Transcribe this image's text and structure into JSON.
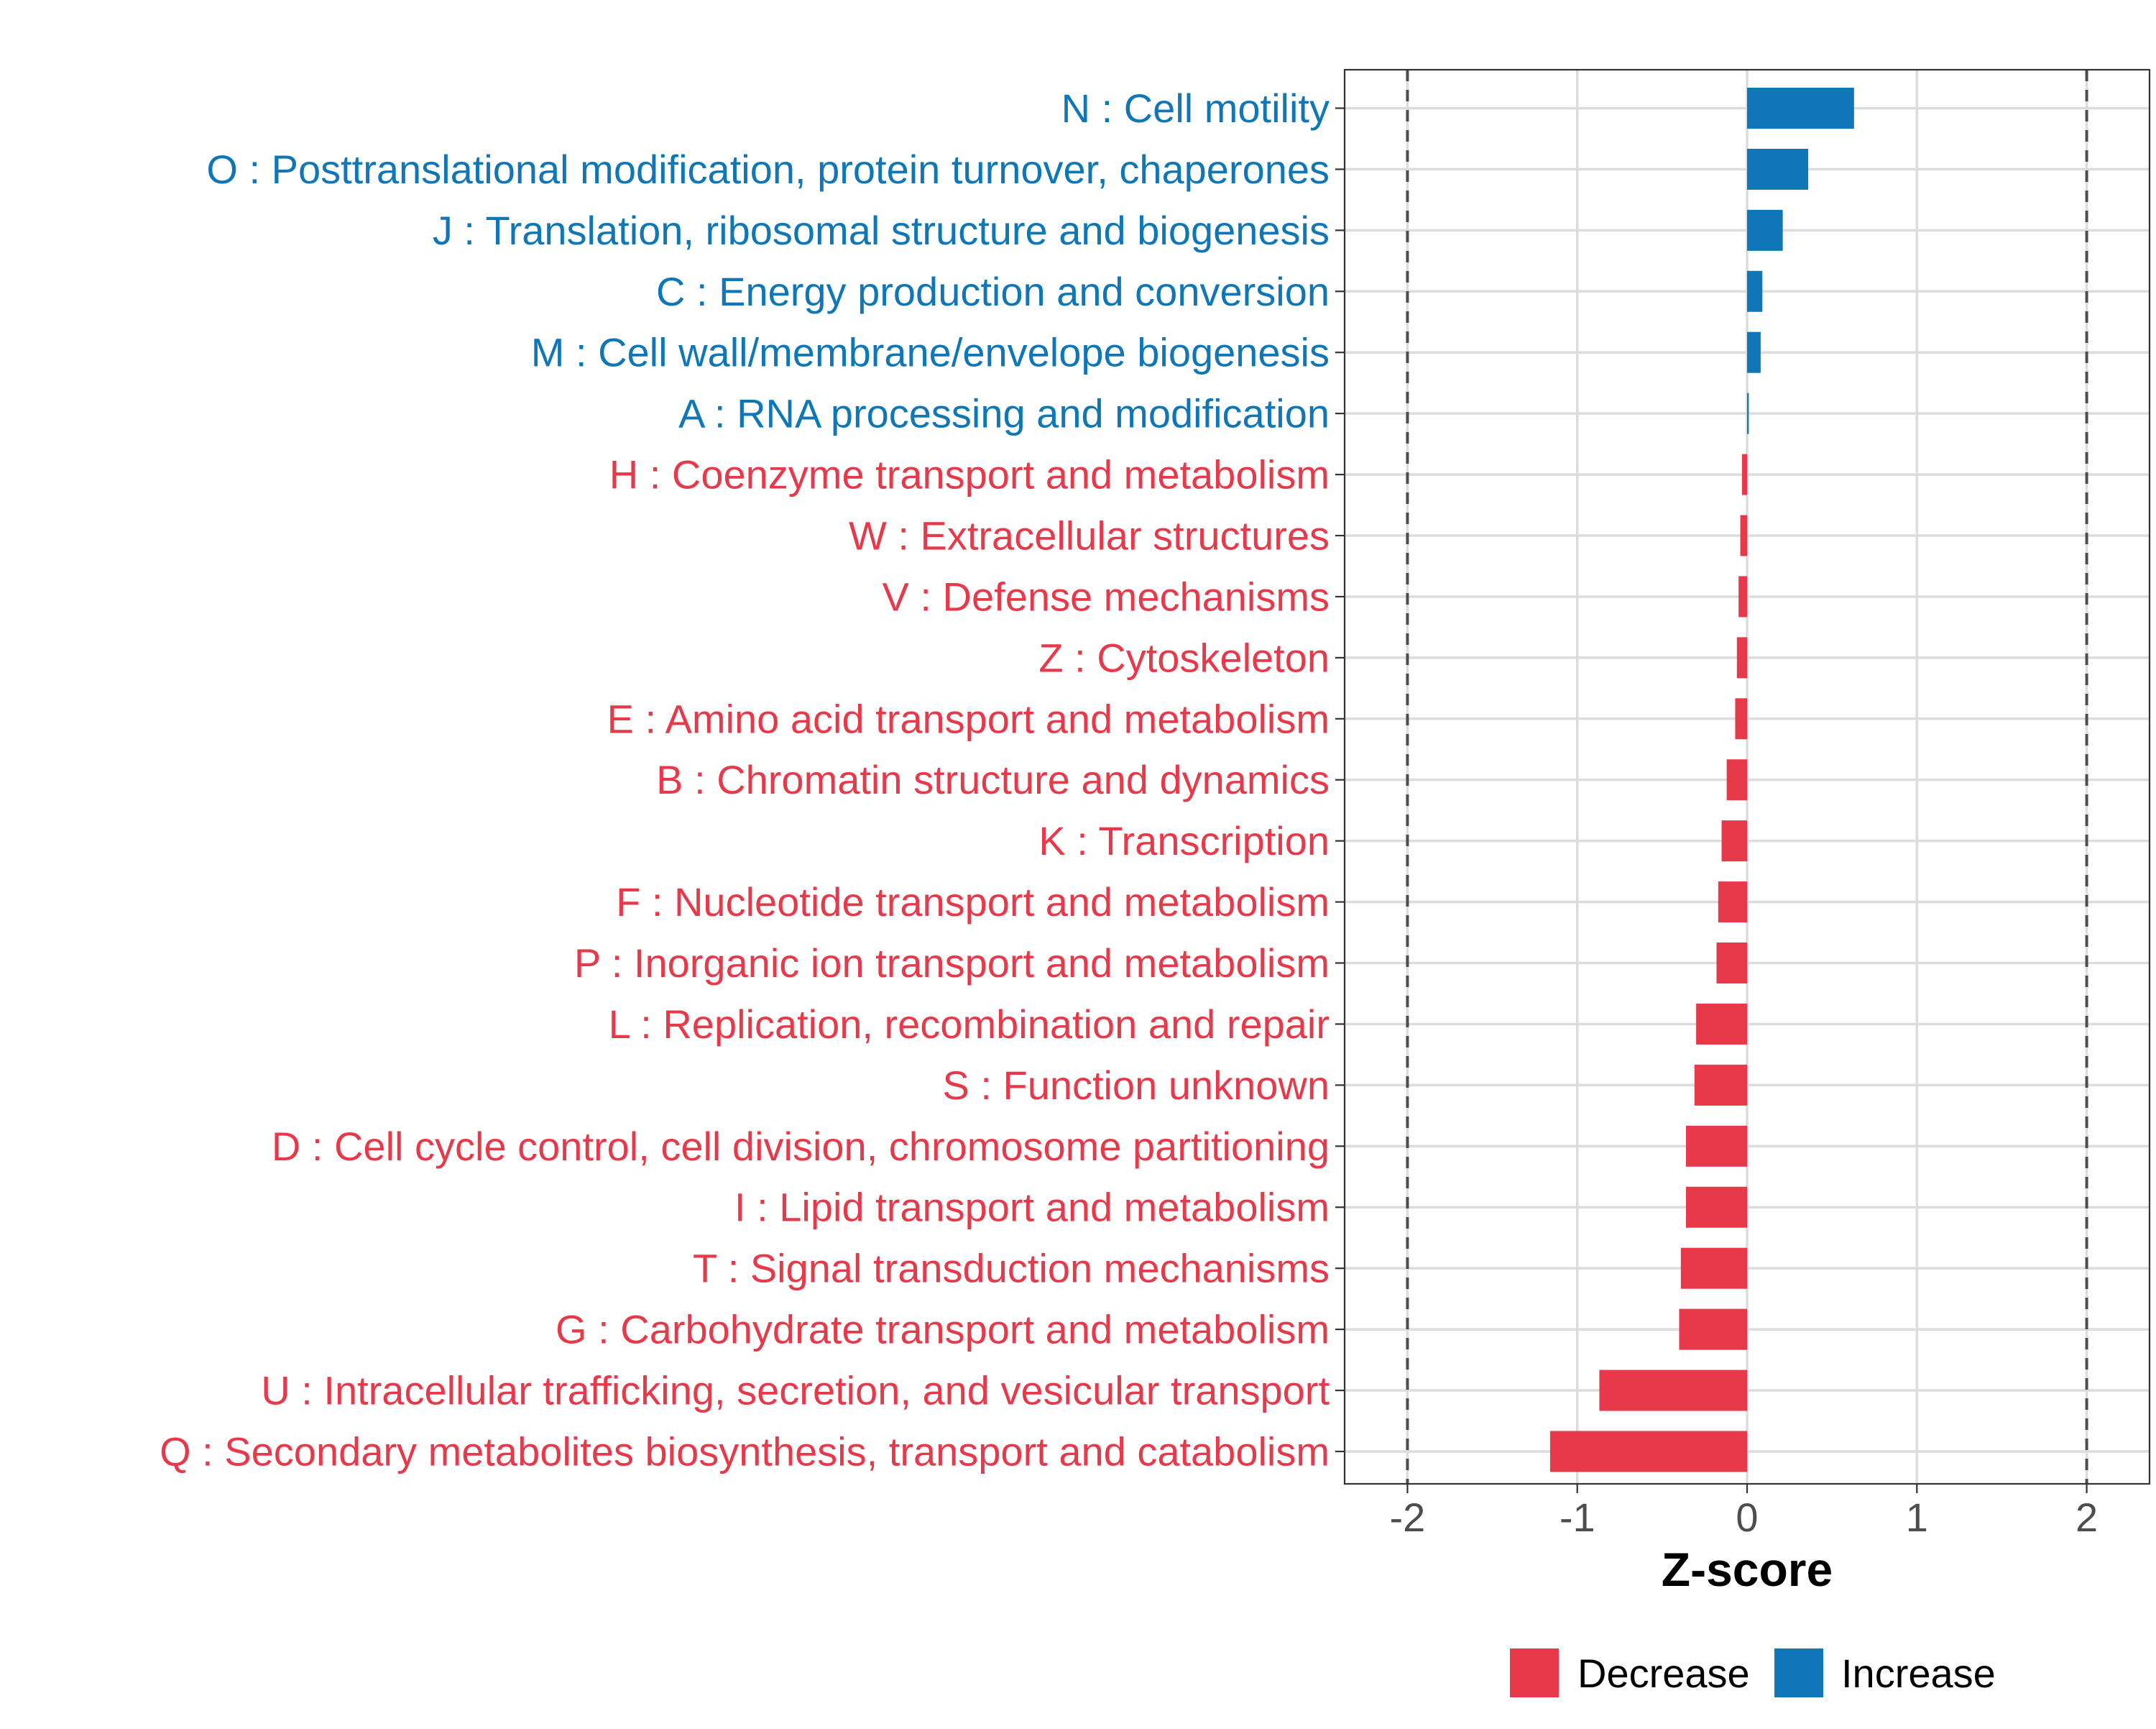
{
  "chart_data": {
    "type": "bar",
    "orientation": "horizontal",
    "title": "",
    "xlabel": "Z-score",
    "ylabel": "",
    "xlim": [
      -2.37,
      2.37
    ],
    "xticks": [
      -2,
      -1,
      0,
      1,
      2
    ],
    "xtick_labels": [
      "-2",
      "-1",
      "0",
      "1",
      "2"
    ],
    "reference_lines": [
      -2,
      2
    ],
    "grid": true,
    "legend_position": "bottom",
    "colors": {
      "Decrease": "#E8394A",
      "Increase": "#0F77B8"
    },
    "legend": [
      {
        "label": "Decrease",
        "color": "#E8394A"
      },
      {
        "label": "Increase",
        "color": "#0F77B8"
      }
    ],
    "categories": [
      "N : Cell motility",
      "O : Posttranslational modification, protein turnover, chaperones",
      "J : Translation, ribosomal structure and biogenesis",
      "C : Energy production and conversion",
      "M : Cell wall/membrane/envelope biogenesis",
      "A : RNA processing and modification",
      "H : Coenzyme transport and metabolism",
      "W : Extracellular structures",
      "V : Defense mechanisms",
      "Z : Cytoskeleton",
      "E : Amino acid transport and metabolism",
      "B : Chromatin structure and dynamics",
      "K : Transcription",
      "F : Nucleotide transport and metabolism",
      "P : Inorganic ion transport and metabolism",
      "L : Replication, recombination and repair",
      "S : Function unknown",
      "D : Cell cycle control, cell division, chromosome partitioning",
      "I : Lipid transport and metabolism",
      "T : Signal transduction mechanisms",
      "G : Carbohydrate transport and metabolism",
      "U : Intracellular trafficking, secretion, and vesicular transport",
      "Q : Secondary metabolites biosynthesis, transport and catabolism"
    ],
    "values": [
      0.63,
      0.36,
      0.21,
      0.09,
      0.08,
      0.01,
      -0.03,
      -0.04,
      -0.05,
      -0.06,
      -0.07,
      -0.12,
      -0.15,
      -0.17,
      -0.18,
      -0.3,
      -0.31,
      -0.36,
      -0.36,
      -0.39,
      -0.4,
      -0.87,
      -1.16
    ],
    "groups": [
      "Increase",
      "Increase",
      "Increase",
      "Increase",
      "Increase",
      "Increase",
      "Decrease",
      "Decrease",
      "Decrease",
      "Decrease",
      "Decrease",
      "Decrease",
      "Decrease",
      "Decrease",
      "Decrease",
      "Decrease",
      "Decrease",
      "Decrease",
      "Decrease",
      "Decrease",
      "Decrease",
      "Decrease",
      "Decrease"
    ]
  }
}
